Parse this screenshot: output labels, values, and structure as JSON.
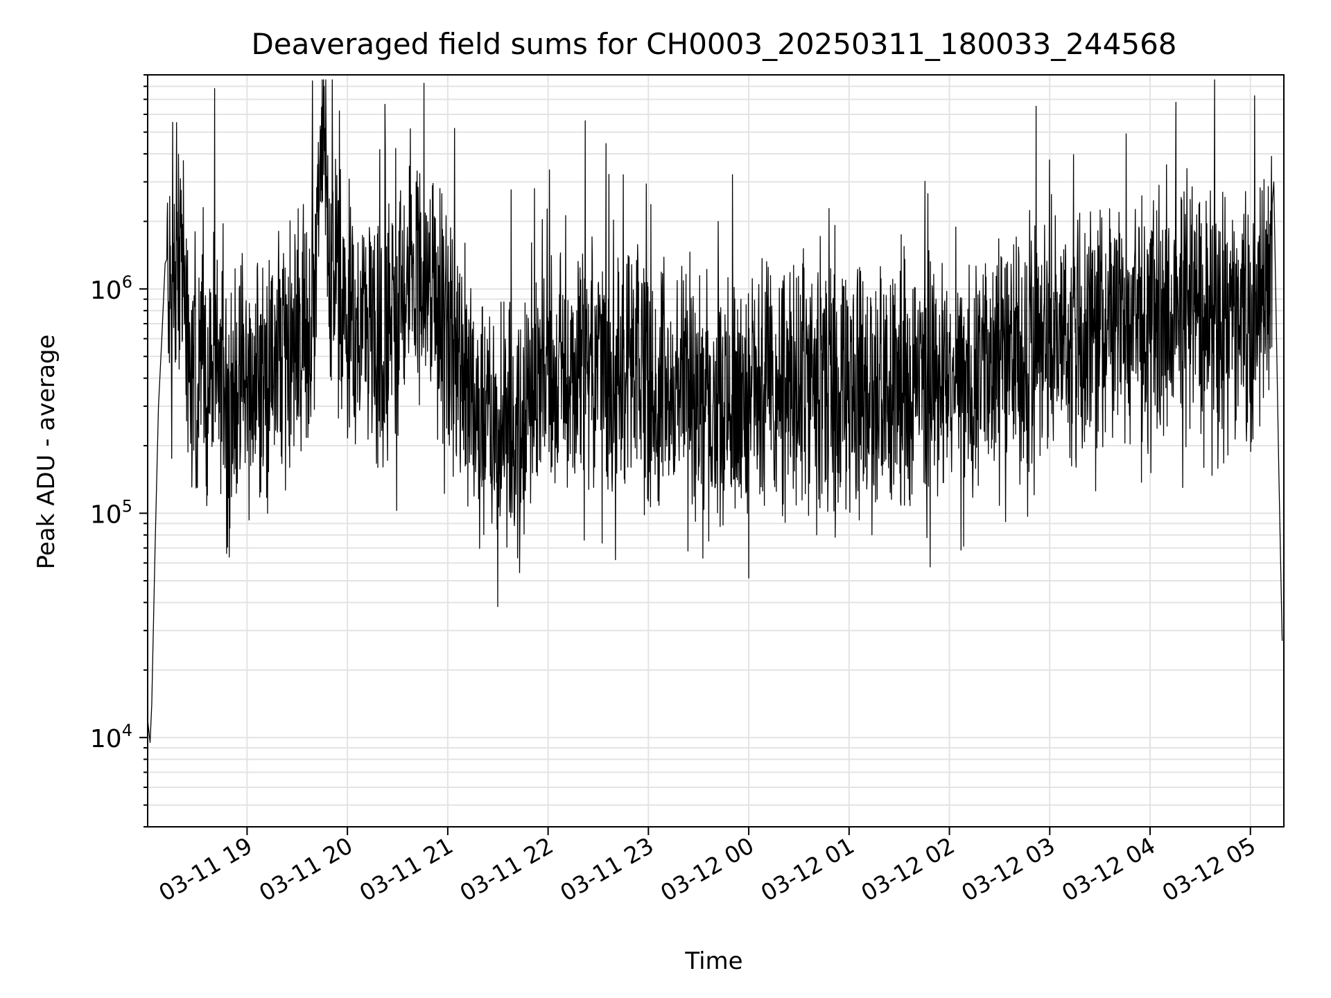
{
  "chart_data": {
    "type": "line",
    "title": "Deaveraged field sums for CH0003_20250311_180033_244568",
    "xlabel": "Time",
    "ylabel": "Peak ADU - average",
    "yscale": "log",
    "ylim": [
      4000,
      9000000
    ],
    "xlim": [
      "2025-03-11 18:00:33",
      "2025-03-12 05:20:00"
    ],
    "grid": "on (major and minor)",
    "x_ticks": [
      {
        "t": "2025-03-11 19:00",
        "label": "03-11 19"
      },
      {
        "t": "2025-03-11 20:00",
        "label": "03-11 20"
      },
      {
        "t": "2025-03-11 21:00",
        "label": "03-11 21"
      },
      {
        "t": "2025-03-11 22:00",
        "label": "03-11 22"
      },
      {
        "t": "2025-03-11 23:00",
        "label": "03-11 23"
      },
      {
        "t": "2025-03-12 00:00",
        "label": "03-12 00"
      },
      {
        "t": "2025-03-12 01:00",
        "label": "03-12 01"
      },
      {
        "t": "2025-03-12 02:00",
        "label": "03-12 02"
      },
      {
        "t": "2025-03-12 03:00",
        "label": "03-12 03"
      },
      {
        "t": "2025-03-12 04:00",
        "label": "03-12 04"
      },
      {
        "t": "2025-03-12 05:00",
        "label": "03-12 05"
      }
    ],
    "y_ticks": [
      {
        "value": 10000,
        "base": "10",
        "exp": "4"
      },
      {
        "value": 100000,
        "base": "10",
        "exp": "5"
      },
      {
        "value": 1000000,
        "base": "10",
        "exp": "6"
      }
    ],
    "series": [
      {
        "color": "#000000",
        "points": [
          [
            "2025-03-11 18:00:33",
            12000
          ],
          [
            "2025-03-11 18:02",
            9500
          ],
          [
            "2025-03-11 18:03",
            14000
          ],
          [
            "2025-03-11 18:05",
            70000
          ],
          [
            "2025-03-11 18:07",
            300000
          ],
          [
            "2025-03-11 18:09",
            600000
          ],
          [
            "2025-03-11 18:11",
            1300000
          ],
          [
            "2025-03-11 18:14",
            1050000
          ],
          [
            "2025-03-11 18:17",
            800000
          ],
          [
            "2025-03-11 18:20",
            1700000
          ],
          [
            "2025-03-11 18:25",
            500000
          ],
          [
            "2025-03-11 18:30",
            350000
          ],
          [
            "2025-03-11 18:40",
            420000
          ],
          [
            "2025-03-11 18:50",
            360000
          ],
          [
            "2025-03-11 19:00",
            380000
          ],
          [
            "2025-03-11 19:10",
            420000
          ],
          [
            "2025-03-11 19:20",
            500000
          ],
          [
            "2025-03-11 19:30",
            600000
          ],
          [
            "2025-03-11 19:40",
            900000
          ],
          [
            "2025-03-11 19:45",
            7200000
          ],
          [
            "2025-03-11 19:50",
            1300000
          ],
          [
            "2025-03-11 20:00",
            600000
          ],
          [
            "2025-03-11 20:10",
            700000
          ],
          [
            "2025-03-11 20:20",
            500000
          ],
          [
            "2025-03-11 20:30",
            900000
          ],
          [
            "2025-03-11 20:40",
            1100000
          ],
          [
            "2025-03-11 20:50",
            900000
          ],
          [
            "2025-03-11 21:00",
            600000
          ],
          [
            "2025-03-11 21:15",
            350000
          ],
          [
            "2025-03-11 21:30",
            260000
          ],
          [
            "2025-03-11 21:45",
            250000
          ],
          [
            "2025-03-11 22:00",
            420000
          ],
          [
            "2025-03-11 22:30",
            450000
          ],
          [
            "2025-03-11 23:00",
            380000
          ],
          [
            "2025-03-11 23:30",
            350000
          ],
          [
            "2025-03-12 00:00",
            330000
          ],
          [
            "2025-03-12 00:30",
            360000
          ],
          [
            "2025-03-12 01:00",
            350000
          ],
          [
            "2025-03-12 01:30",
            380000
          ],
          [
            "2025-03-12 02:00",
            400000
          ],
          [
            "2025-03-12 02:30",
            480000
          ],
          [
            "2025-03-12 03:00",
            550000
          ],
          [
            "2025-03-12 03:30",
            650000
          ],
          [
            "2025-03-12 04:00",
            750000
          ],
          [
            "2025-03-12 04:30",
            800000
          ],
          [
            "2025-03-12 04:50",
            750000
          ],
          [
            "2025-03-12 05:00",
            600000
          ],
          [
            "2025-03-12 05:10",
            1200000
          ],
          [
            "2025-03-12 05:14",
            3000000
          ],
          [
            "2025-03-12 05:17",
            150000
          ],
          [
            "2025-03-12 05:19",
            27000
          ]
        ]
      }
    ]
  }
}
